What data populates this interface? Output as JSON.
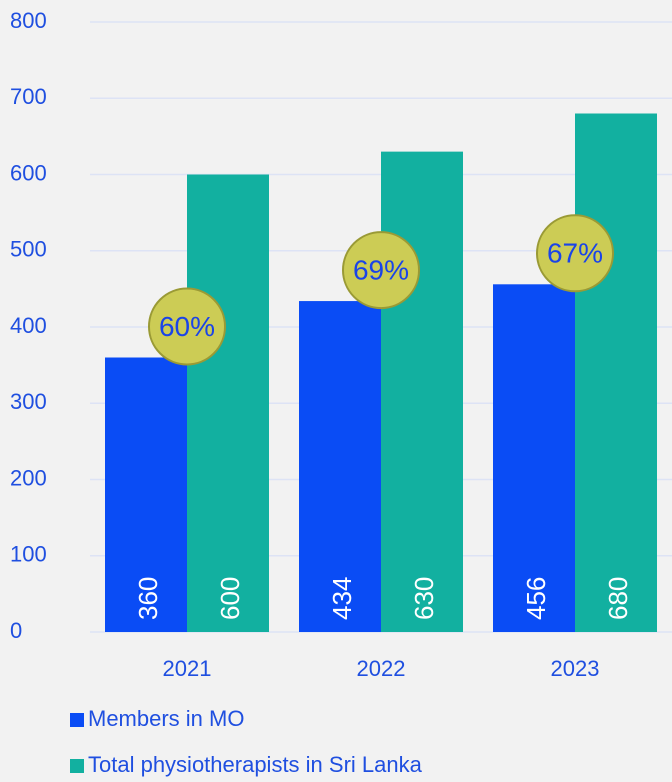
{
  "chart_data": {
    "type": "bar",
    "categories": [
      "2021",
      "2022",
      "2023"
    ],
    "series": [
      {
        "name": "Members in MO",
        "color": "#0a4cf5",
        "values": [
          360,
          434,
          456
        ]
      },
      {
        "name": "Total physiotherapists in Sri Lanka",
        "color": "#12b0a0",
        "values": [
          600,
          630,
          680
        ]
      }
    ],
    "annotations": {
      "values": [
        60,
        69,
        67
      ],
      "labels": [
        "60%",
        "69%",
        "67%"
      ],
      "color": "#cccc55"
    },
    "ylim": [
      0,
      800
    ],
    "yticks": [
      0,
      100,
      200,
      300,
      400,
      500,
      600,
      700,
      800
    ],
    "grid": true
  }
}
